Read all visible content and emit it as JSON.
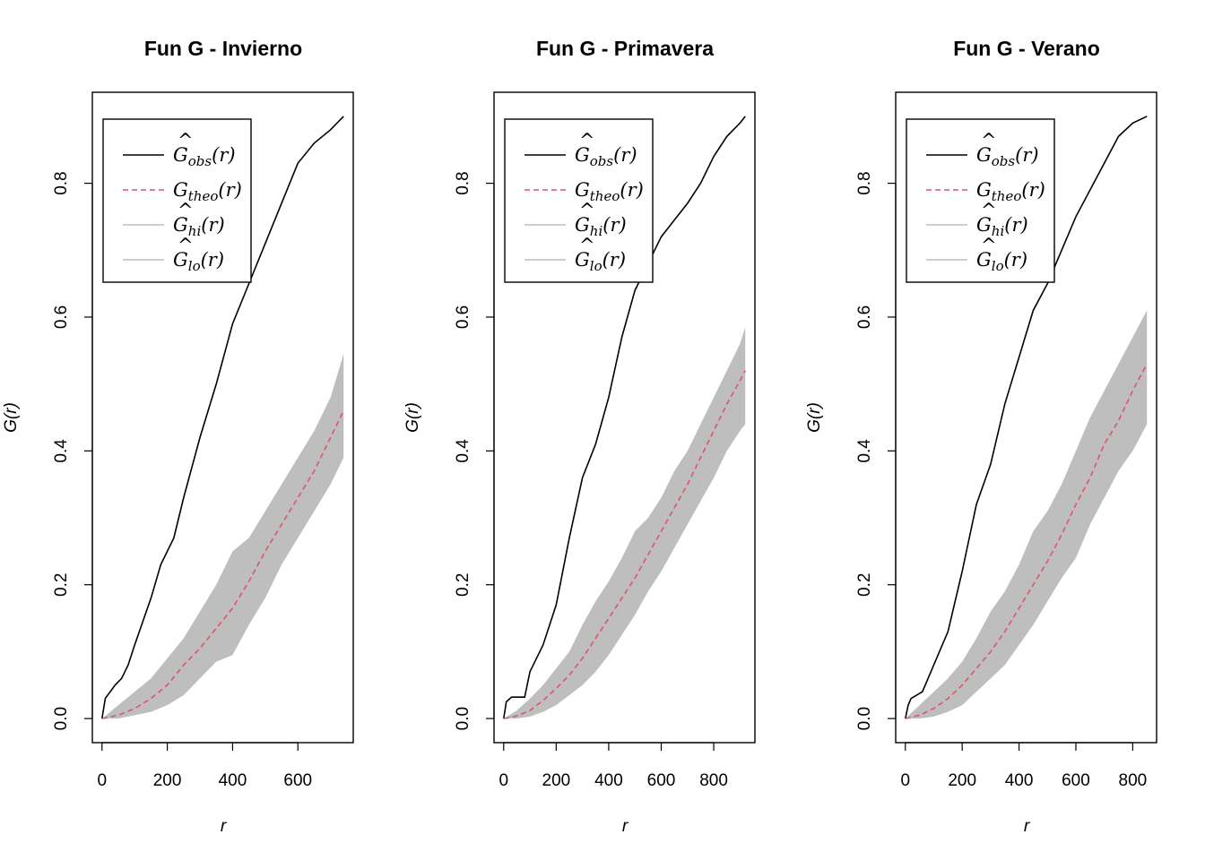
{
  "chart_data": [
    {
      "type": "line",
      "title": "Fun G - Invierno",
      "xlabel": "r",
      "ylabel": "G(r)",
      "xlim": [
        0,
        740
      ],
      "ylim": [
        0,
        0.9
      ],
      "xticks": [
        0,
        200,
        400,
        600
      ],
      "yticks": [
        0.0,
        0.2,
        0.4,
        0.6,
        0.8
      ],
      "legend_position": "top-left",
      "series": [
        {
          "name": "obs",
          "color": "#000000",
          "style": "solid",
          "x": [
            0,
            10,
            40,
            60,
            80,
            100,
            150,
            180,
            220,
            250,
            300,
            350,
            400,
            450,
            500,
            550,
            600,
            650,
            700,
            740
          ],
          "y": [
            0.0,
            0.03,
            0.05,
            0.06,
            0.08,
            0.11,
            0.18,
            0.23,
            0.27,
            0.33,
            0.42,
            0.5,
            0.59,
            0.65,
            0.71,
            0.77,
            0.83,
            0.86,
            0.88,
            0.9
          ]
        },
        {
          "name": "theo",
          "color": "#DF536B",
          "style": "dashed",
          "x": [
            0,
            50,
            100,
            150,
            200,
            250,
            300,
            350,
            400,
            450,
            500,
            550,
            600,
            650,
            700,
            740
          ],
          "y": [
            0.0,
            0.005,
            0.015,
            0.03,
            0.05,
            0.08,
            0.105,
            0.135,
            0.165,
            0.205,
            0.25,
            0.29,
            0.33,
            0.37,
            0.42,
            0.46
          ]
        },
        {
          "name": "hi",
          "color": "#BEBEBE",
          "style": "band-upper",
          "x": [
            0,
            50,
            100,
            150,
            200,
            250,
            300,
            350,
            400,
            450,
            500,
            550,
            600,
            650,
            700,
            740
          ],
          "y": [
            0.0,
            0.02,
            0.04,
            0.06,
            0.09,
            0.12,
            0.16,
            0.2,
            0.25,
            0.27,
            0.31,
            0.35,
            0.39,
            0.43,
            0.48,
            0.545
          ]
        },
        {
          "name": "lo",
          "color": "#BEBEBE",
          "style": "band-lower",
          "x": [
            0,
            50,
            100,
            150,
            200,
            250,
            300,
            350,
            400,
            450,
            500,
            550,
            600,
            650,
            700,
            740
          ],
          "y": [
            0.0,
            0.0,
            0.005,
            0.01,
            0.02,
            0.035,
            0.06,
            0.085,
            0.095,
            0.14,
            0.18,
            0.23,
            0.27,
            0.31,
            0.35,
            0.39
          ]
        }
      ]
    },
    {
      "type": "line",
      "title": "Fun G - Primavera",
      "xlabel": "r",
      "ylabel": "G(r)",
      "xlim": [
        0,
        920
      ],
      "ylim": [
        0,
        0.9
      ],
      "xticks": [
        0,
        200,
        400,
        600,
        800
      ],
      "yticks": [
        0.0,
        0.2,
        0.4,
        0.6,
        0.8
      ],
      "legend_position": "top-left",
      "series": [
        {
          "name": "obs",
          "color": "#000000",
          "style": "solid",
          "x": [
            0,
            10,
            30,
            80,
            100,
            150,
            200,
            250,
            300,
            350,
            400,
            450,
            500,
            550,
            600,
            650,
            700,
            750,
            800,
            850,
            900,
            920
          ],
          "y": [
            0.0,
            0.025,
            0.032,
            0.032,
            0.07,
            0.11,
            0.17,
            0.27,
            0.36,
            0.41,
            0.48,
            0.57,
            0.64,
            0.68,
            0.72,
            0.745,
            0.77,
            0.8,
            0.84,
            0.87,
            0.89,
            0.9
          ]
        },
        {
          "name": "theo",
          "color": "#DF536B",
          "style": "dashed",
          "x": [
            0,
            50,
            100,
            150,
            200,
            250,
            300,
            350,
            400,
            450,
            500,
            550,
            600,
            650,
            700,
            750,
            800,
            850,
            900,
            920
          ],
          "y": [
            0.0,
            0.004,
            0.012,
            0.027,
            0.045,
            0.065,
            0.09,
            0.12,
            0.15,
            0.18,
            0.21,
            0.245,
            0.28,
            0.315,
            0.35,
            0.39,
            0.43,
            0.47,
            0.505,
            0.52
          ]
        },
        {
          "name": "hi",
          "color": "#BEBEBE",
          "style": "band-upper",
          "x": [
            0,
            50,
            100,
            150,
            200,
            250,
            300,
            350,
            400,
            450,
            500,
            550,
            600,
            650,
            700,
            750,
            800,
            850,
            900,
            920
          ],
          "y": [
            0.0,
            0.012,
            0.03,
            0.05,
            0.075,
            0.1,
            0.14,
            0.175,
            0.205,
            0.24,
            0.28,
            0.3,
            0.33,
            0.37,
            0.4,
            0.44,
            0.48,
            0.52,
            0.56,
            0.585
          ]
        },
        {
          "name": "lo",
          "color": "#BEBEBE",
          "style": "band-lower",
          "x": [
            0,
            50,
            100,
            150,
            200,
            250,
            300,
            350,
            400,
            450,
            500,
            550,
            600,
            650,
            700,
            750,
            800,
            850,
            900,
            920
          ],
          "y": [
            0.0,
            0.0,
            0.003,
            0.01,
            0.02,
            0.035,
            0.05,
            0.07,
            0.095,
            0.125,
            0.155,
            0.19,
            0.22,
            0.255,
            0.29,
            0.325,
            0.36,
            0.4,
            0.43,
            0.44
          ]
        }
      ]
    },
    {
      "type": "line",
      "title": "Fun G - Verano",
      "xlabel": "r",
      "ylabel": "G(r)",
      "xlim": [
        0,
        850
      ],
      "ylim": [
        0,
        0.9
      ],
      "xticks": [
        0,
        200,
        400,
        600,
        800
      ],
      "yticks": [
        0.0,
        0.2,
        0.4,
        0.6,
        0.8
      ],
      "legend_position": "top-left",
      "series": [
        {
          "name": "obs",
          "color": "#000000",
          "style": "solid",
          "x": [
            0,
            10,
            20,
            60,
            100,
            150,
            200,
            250,
            300,
            350,
            400,
            450,
            500,
            550,
            600,
            650,
            700,
            750,
            800,
            850
          ],
          "y": [
            0.0,
            0.02,
            0.03,
            0.04,
            0.08,
            0.13,
            0.22,
            0.32,
            0.38,
            0.47,
            0.54,
            0.61,
            0.65,
            0.7,
            0.75,
            0.79,
            0.83,
            0.87,
            0.89,
            0.9
          ]
        },
        {
          "name": "theo",
          "color": "#DF536B",
          "style": "dashed",
          "x": [
            0,
            50,
            100,
            150,
            200,
            250,
            300,
            350,
            400,
            450,
            500,
            550,
            600,
            650,
            700,
            750,
            800,
            850
          ],
          "y": [
            0.0,
            0.005,
            0.015,
            0.03,
            0.05,
            0.075,
            0.1,
            0.13,
            0.165,
            0.2,
            0.235,
            0.275,
            0.32,
            0.36,
            0.41,
            0.445,
            0.49,
            0.53
          ]
        },
        {
          "name": "hi",
          "color": "#BEBEBE",
          "style": "band-upper",
          "x": [
            0,
            50,
            100,
            150,
            200,
            250,
            300,
            350,
            400,
            450,
            500,
            550,
            600,
            650,
            700,
            750,
            800,
            850
          ],
          "y": [
            0.0,
            0.02,
            0.04,
            0.06,
            0.085,
            0.12,
            0.16,
            0.19,
            0.23,
            0.28,
            0.31,
            0.35,
            0.4,
            0.45,
            0.49,
            0.53,
            0.57,
            0.61
          ]
        },
        {
          "name": "lo",
          "color": "#BEBEBE",
          "style": "band-lower",
          "x": [
            0,
            50,
            100,
            150,
            200,
            250,
            300,
            350,
            400,
            450,
            500,
            550,
            600,
            650,
            700,
            750,
            800,
            850
          ],
          "y": [
            0.0,
            0.0,
            0.003,
            0.01,
            0.02,
            0.04,
            0.06,
            0.08,
            0.11,
            0.14,
            0.175,
            0.21,
            0.24,
            0.29,
            0.33,
            0.37,
            0.4,
            0.44
          ]
        }
      ]
    }
  ],
  "legend_labels": [
    {
      "key": "obs",
      "base": "G",
      "hat": "^",
      "sub": "obs",
      "arg": "(r)",
      "color": "#000000",
      "style": "solid"
    },
    {
      "key": "theo",
      "base": "G",
      "hat": "",
      "sub": "theo",
      "arg": "(r)",
      "color": "#DF536B",
      "style": "dashed"
    },
    {
      "key": "hi",
      "base": "G",
      "hat": "^",
      "sub": "hi",
      "arg": "(r)",
      "color": "#BEBEBE",
      "style": "solid"
    },
    {
      "key": "lo",
      "base": "G",
      "hat": "^",
      "sub": "lo",
      "arg": "(r)",
      "color": "#BEBEBE",
      "style": "solid"
    }
  ]
}
